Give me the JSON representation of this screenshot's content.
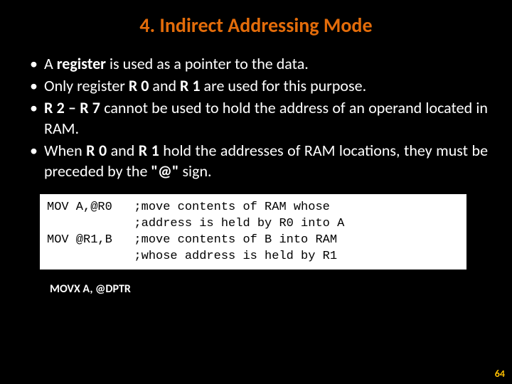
{
  "colors": {
    "background": "#000000",
    "text": "#ffffff",
    "title": "#e36c0a",
    "codebox_bg": "#ffffff",
    "codebox_text": "#000000",
    "pagenum": "#ffc000"
  },
  "typography": {
    "title_fontsize": 28,
    "body_fontsize": 22,
    "code_fontsize": 17,
    "movx_fontsize": 16,
    "pagenum_fontsize": 14
  },
  "title": "4. Indirect Addressing Mode",
  "bullets": [
    {
      "pre": "A ",
      "b1": "register",
      "post": " is used as a pointer to the data."
    },
    {
      "pre": "Only register ",
      "b1": "R 0",
      "mid1": " and ",
      "b2": "R 1",
      "post": " are used for this purpose."
    },
    {
      "b1": "R 2 – R 7",
      "post": " cannot be used to hold the address of an operand located in RAM."
    },
    {
      "pre": "When ",
      "b1": "R 0",
      "mid1": " and ",
      "b2": "R 1",
      "mid2": " hold the addresses of RAM locations, they must be preceded by the ",
      "b3": "\"@\"",
      "post": " sign."
    }
  ],
  "code": "MOV A,@R0   ;move contents of RAM whose\n            ;address is held by R0 into A\nMOV @R1,B   ;move contents of B into RAM\n            ;whose address is held by R1",
  "movx": "MOVX    A, @DPTR",
  "page_number": "64"
}
